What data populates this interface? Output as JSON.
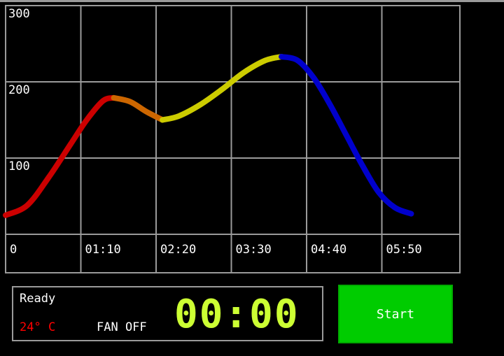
{
  "chart_data": {
    "type": "line",
    "title": "",
    "xlabel": "",
    "ylabel": "",
    "x_tick_labels": [
      "0",
      "01:10",
      "02:20",
      "03:30",
      "04:40",
      "05:50"
    ],
    "y_tick_labels": [
      "100",
      "200",
      "300"
    ],
    "ylim": [
      0,
      300
    ],
    "xlim_seconds": [
      0,
      420
    ],
    "grid": true,
    "series": [
      {
        "color": "#cc0000",
        "points": [
          [
            0,
            25
          ],
          [
            20,
            38
          ],
          [
            40,
            75
          ],
          [
            60,
            118
          ],
          [
            75,
            150
          ],
          [
            90,
            175
          ],
          [
            100,
            179
          ]
        ]
      },
      {
        "color": "#cc6600",
        "points": [
          [
            100,
            179
          ],
          [
            115,
            174
          ],
          [
            130,
            161
          ],
          [
            145,
            150
          ]
        ]
      },
      {
        "color": "#cccc00",
        "points": [
          [
            145,
            150
          ],
          [
            160,
            155
          ],
          [
            180,
            170
          ],
          [
            200,
            190
          ],
          [
            220,
            212
          ],
          [
            240,
            228
          ],
          [
            255,
            233
          ]
        ]
      },
      {
        "color": "#0000cc",
        "points": [
          [
            255,
            233
          ],
          [
            270,
            228
          ],
          [
            285,
            205
          ],
          [
            300,
            170
          ],
          [
            315,
            130
          ],
          [
            330,
            90
          ],
          [
            345,
            55
          ],
          [
            360,
            35
          ],
          [
            375,
            27
          ]
        ]
      }
    ]
  },
  "status": {
    "label": "Ready",
    "temperature": "24° C",
    "fan": "FAN OFF",
    "timer": "00:00"
  },
  "start_button": {
    "label": "Start"
  },
  "colors": {
    "temperature_text": "#ff0000",
    "timer_digits": "#ccff33",
    "start_button_bg": "#00cc00",
    "grid_lines": "#9a9a9a"
  }
}
